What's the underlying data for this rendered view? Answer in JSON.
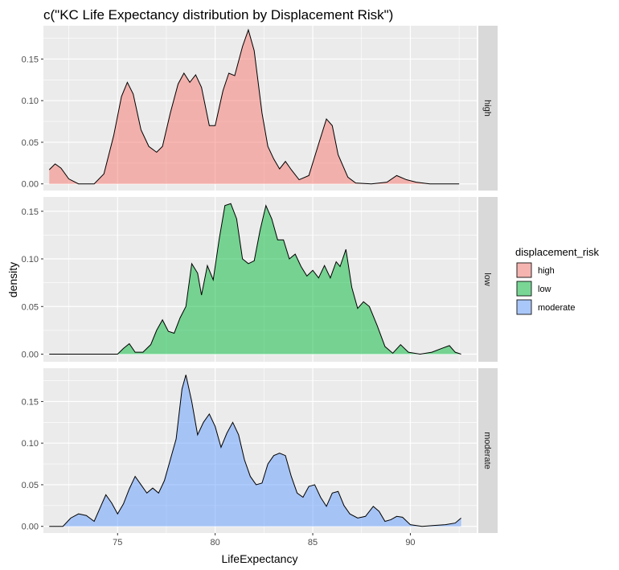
{
  "chart_data": {
    "type": "area",
    "title": "c(\"KC Life Expectancy distribution by Displacement Risk\")",
    "xlabel": "LifeExpectancy",
    "ylabel": "density",
    "xlim": [
      71.2,
      93.4
    ],
    "x_ticks": [
      75,
      80,
      85,
      90
    ],
    "grid": true,
    "legend": {
      "title": "displacement_risk",
      "position": "right",
      "entries": [
        "high",
        "low",
        "moderate"
      ]
    },
    "facets": [
      {
        "name": "high",
        "fill": "#F8766D",
        "ylim": [
          -0.008,
          0.19
        ],
        "y_ticks": [
          0.0,
          0.05,
          0.1,
          0.15
        ],
        "points": [
          [
            71.5,
            0.017
          ],
          [
            71.8,
            0.024
          ],
          [
            72.1,
            0.019
          ],
          [
            72.5,
            0.006
          ],
          [
            73.0,
            0.0
          ],
          [
            73.8,
            0.0
          ],
          [
            74.3,
            0.012
          ],
          [
            74.8,
            0.058
          ],
          [
            75.2,
            0.105
          ],
          [
            75.5,
            0.122
          ],
          [
            75.8,
            0.108
          ],
          [
            76.2,
            0.065
          ],
          [
            76.6,
            0.045
          ],
          [
            77.0,
            0.038
          ],
          [
            77.3,
            0.045
          ],
          [
            77.7,
            0.085
          ],
          [
            78.1,
            0.12
          ],
          [
            78.4,
            0.133
          ],
          [
            78.7,
            0.122
          ],
          [
            79.0,
            0.131
          ],
          [
            79.3,
            0.116
          ],
          [
            79.7,
            0.07
          ],
          [
            80.0,
            0.07
          ],
          [
            80.4,
            0.112
          ],
          [
            80.7,
            0.133
          ],
          [
            81.0,
            0.13
          ],
          [
            81.4,
            0.165
          ],
          [
            81.7,
            0.185
          ],
          [
            82.0,
            0.16
          ],
          [
            82.4,
            0.085
          ],
          [
            82.7,
            0.045
          ],
          [
            83.0,
            0.03
          ],
          [
            83.3,
            0.018
          ],
          [
            83.6,
            0.027
          ],
          [
            83.9,
            0.017
          ],
          [
            84.3,
            0.005
          ],
          [
            84.8,
            0.01
          ],
          [
            85.3,
            0.048
          ],
          [
            85.7,
            0.078
          ],
          [
            86.0,
            0.07
          ],
          [
            86.3,
            0.035
          ],
          [
            86.8,
            0.008
          ],
          [
            87.2,
            0.001
          ],
          [
            88.0,
            0.0
          ],
          [
            88.8,
            0.002
          ],
          [
            89.3,
            0.01
          ],
          [
            89.8,
            0.005
          ],
          [
            90.3,
            0.002
          ],
          [
            91.0,
            0.0
          ],
          [
            92.5,
            0.0
          ]
        ]
      },
      {
        "name": "low",
        "fill": "#00BA38",
        "ylim": [
          -0.008,
          0.165
        ],
        "y_ticks": [
          0.0,
          0.05,
          0.1,
          0.15
        ],
        "points": [
          [
            71.5,
            0.0
          ],
          [
            72.5,
            0.0
          ],
          [
            74.5,
            0.0
          ],
          [
            75.0,
            0.0
          ],
          [
            75.3,
            0.006
          ],
          [
            75.6,
            0.011
          ],
          [
            75.9,
            0.002
          ],
          [
            76.3,
            0.002
          ],
          [
            76.7,
            0.01
          ],
          [
            77.0,
            0.025
          ],
          [
            77.3,
            0.036
          ],
          [
            77.6,
            0.024
          ],
          [
            77.9,
            0.022
          ],
          [
            78.2,
            0.038
          ],
          [
            78.5,
            0.05
          ],
          [
            78.8,
            0.095
          ],
          [
            79.1,
            0.085
          ],
          [
            79.3,
            0.062
          ],
          [
            79.6,
            0.093
          ],
          [
            79.9,
            0.078
          ],
          [
            80.2,
            0.12
          ],
          [
            80.5,
            0.156
          ],
          [
            80.8,
            0.158
          ],
          [
            81.1,
            0.142
          ],
          [
            81.4,
            0.1
          ],
          [
            81.7,
            0.095
          ],
          [
            82.0,
            0.098
          ],
          [
            82.3,
            0.13
          ],
          [
            82.6,
            0.156
          ],
          [
            82.9,
            0.142
          ],
          [
            83.2,
            0.12
          ],
          [
            83.5,
            0.12
          ],
          [
            83.8,
            0.1
          ],
          [
            84.1,
            0.105
          ],
          [
            84.4,
            0.092
          ],
          [
            84.7,
            0.082
          ],
          [
            85.0,
            0.088
          ],
          [
            85.3,
            0.08
          ],
          [
            85.6,
            0.093
          ],
          [
            85.9,
            0.08
          ],
          [
            86.2,
            0.097
          ],
          [
            86.4,
            0.092
          ],
          [
            86.7,
            0.11
          ],
          [
            87.0,
            0.07
          ],
          [
            87.3,
            0.048
          ],
          [
            87.6,
            0.055
          ],
          [
            87.9,
            0.05
          ],
          [
            88.3,
            0.03
          ],
          [
            88.7,
            0.008
          ],
          [
            89.1,
            0.001
          ],
          [
            89.5,
            0.01
          ],
          [
            89.9,
            0.002
          ],
          [
            90.5,
            0.0
          ],
          [
            91.1,
            0.002
          ],
          [
            91.6,
            0.006
          ],
          [
            92.0,
            0.009
          ],
          [
            92.3,
            0.002
          ],
          [
            92.6,
            0.0
          ]
        ]
      },
      {
        "name": "moderate",
        "fill": "#619CFF",
        "ylim": [
          -0.008,
          0.19
        ],
        "y_ticks": [
          0.0,
          0.05,
          0.1,
          0.15
        ],
        "points": [
          [
            71.5,
            0.0
          ],
          [
            72.2,
            0.0
          ],
          [
            72.6,
            0.01
          ],
          [
            73.0,
            0.015
          ],
          [
            73.4,
            0.013
          ],
          [
            73.8,
            0.006
          ],
          [
            74.1,
            0.022
          ],
          [
            74.4,
            0.038
          ],
          [
            74.7,
            0.028
          ],
          [
            75.0,
            0.015
          ],
          [
            75.3,
            0.027
          ],
          [
            75.6,
            0.045
          ],
          [
            75.9,
            0.06
          ],
          [
            76.2,
            0.05
          ],
          [
            76.5,
            0.04
          ],
          [
            76.8,
            0.046
          ],
          [
            77.1,
            0.04
          ],
          [
            77.4,
            0.055
          ],
          [
            77.7,
            0.08
          ],
          [
            78.0,
            0.105
          ],
          [
            78.3,
            0.165
          ],
          [
            78.5,
            0.182
          ],
          [
            78.8,
            0.15
          ],
          [
            79.1,
            0.11
          ],
          [
            79.4,
            0.125
          ],
          [
            79.7,
            0.135
          ],
          [
            80.0,
            0.12
          ],
          [
            80.3,
            0.095
          ],
          [
            80.6,
            0.112
          ],
          [
            80.9,
            0.125
          ],
          [
            81.2,
            0.11
          ],
          [
            81.5,
            0.08
          ],
          [
            81.8,
            0.06
          ],
          [
            82.1,
            0.05
          ],
          [
            82.4,
            0.052
          ],
          [
            82.7,
            0.075
          ],
          [
            83.0,
            0.085
          ],
          [
            83.3,
            0.088
          ],
          [
            83.6,
            0.085
          ],
          [
            83.9,
            0.06
          ],
          [
            84.2,
            0.04
          ],
          [
            84.5,
            0.035
          ],
          [
            84.8,
            0.048
          ],
          [
            85.1,
            0.05
          ],
          [
            85.4,
            0.035
          ],
          [
            85.7,
            0.024
          ],
          [
            86.0,
            0.04
          ],
          [
            86.3,
            0.042
          ],
          [
            86.6,
            0.025
          ],
          [
            86.9,
            0.015
          ],
          [
            87.3,
            0.01
          ],
          [
            87.7,
            0.012
          ],
          [
            88.1,
            0.024
          ],
          [
            88.4,
            0.018
          ],
          [
            88.7,
            0.006
          ],
          [
            89.0,
            0.008
          ],
          [
            89.3,
            0.012
          ],
          [
            89.6,
            0.011
          ],
          [
            90.0,
            0.002
          ],
          [
            90.6,
            0.0
          ],
          [
            91.2,
            0.001
          ],
          [
            91.8,
            0.002
          ],
          [
            92.3,
            0.004
          ],
          [
            92.6,
            0.01
          ]
        ]
      }
    ]
  }
}
